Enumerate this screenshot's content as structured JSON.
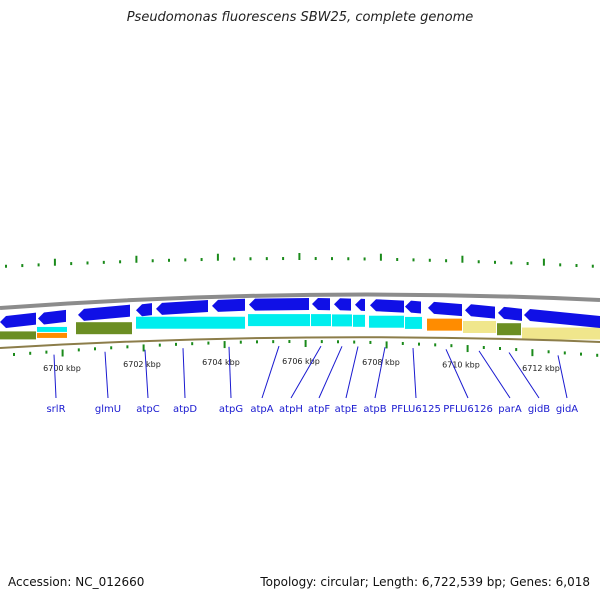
{
  "title": "Pseudomonas fluorescens SBW25, complete genome",
  "footer": {
    "accession": "Accession: NC_012660",
    "topology": "Topology: circular; Length: 6,722,539 bp; Genes: 6,018"
  },
  "colors": {
    "backbone": "#8c8c8c",
    "gene": "#1010e6",
    "cds_cyan": "#00eeee",
    "cds_olive": "#6b8e23",
    "cds_orange": "#ff8c00",
    "cds_khaki": "#f0e68c",
    "tick": "#1a8a1a",
    "label": "#1a1ad0"
  },
  "kbp_ticks": [
    {
      "label": "6700 kbp"
    },
    {
      "label": "6702 kbp"
    },
    {
      "label": "6704 kbp"
    },
    {
      "label": "6706 kbp"
    },
    {
      "label": "6708 kbp"
    },
    {
      "label": "6710 kbp"
    },
    {
      "label": "6712 kbp"
    }
  ],
  "genes": [
    {
      "label": "srlR"
    },
    {
      "label": "glmU"
    },
    {
      "label": "atpC"
    },
    {
      "label": "atpD"
    },
    {
      "label": "atpG"
    },
    {
      "label": "atpA"
    },
    {
      "label": "atpH"
    },
    {
      "label": "atpF"
    },
    {
      "label": "atpE"
    },
    {
      "label": "atpB"
    },
    {
      "label": "PFLU6125"
    },
    {
      "label": "PFLU6126"
    },
    {
      "label": "parA"
    },
    {
      "label": "gidB"
    },
    {
      "label": "gidA"
    }
  ]
}
